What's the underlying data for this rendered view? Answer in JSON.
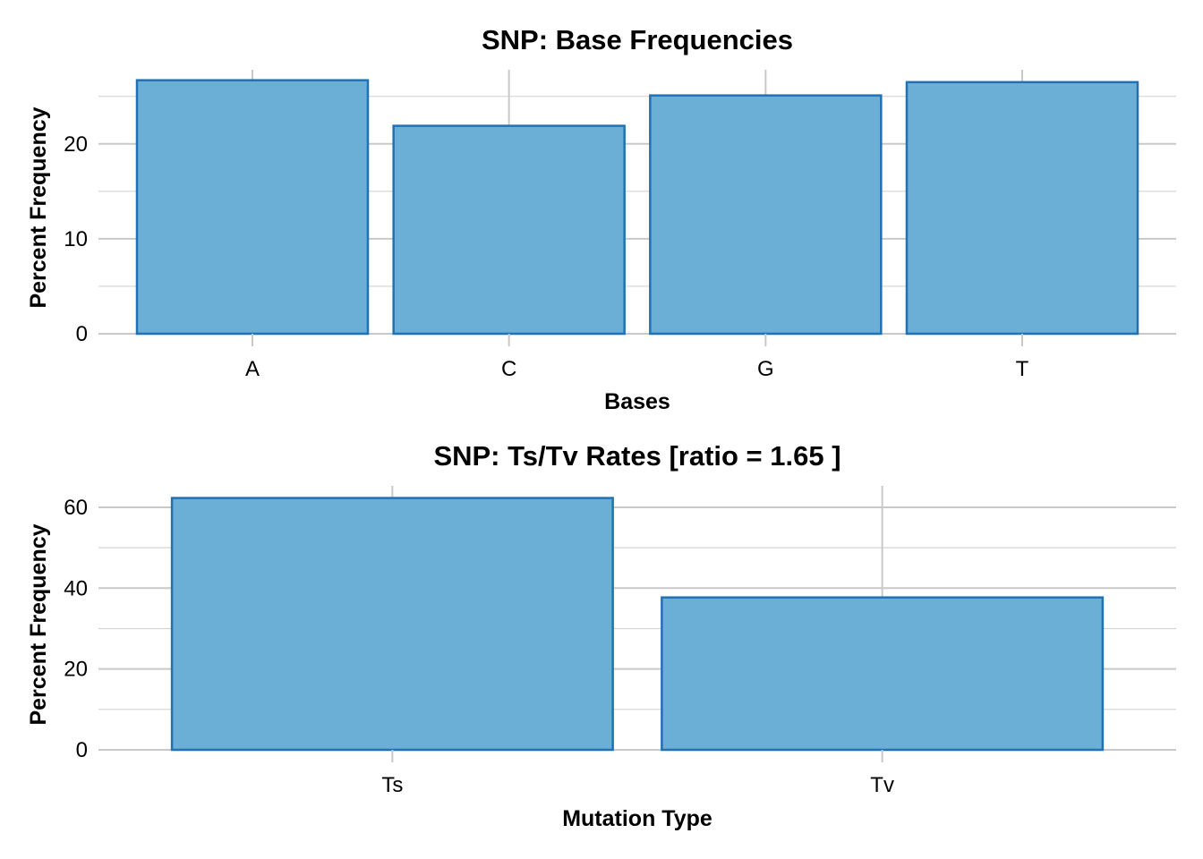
{
  "chart_data": [
    {
      "type": "bar",
      "title": "SNP: Base Frequencies",
      "xlabel": "Bases",
      "ylabel": "Percent Frequency",
      "categories": [
        "A",
        "C",
        "G",
        "T"
      ],
      "values": [
        26.7,
        21.9,
        25.1,
        26.5
      ],
      "ylim": [
        0,
        27.8
      ],
      "yticks": [
        0,
        10,
        20
      ],
      "yminor": [
        5,
        15,
        25
      ],
      "grid": true,
      "bar_fill": "#6baed6",
      "bar_stroke": "#2171b5"
    },
    {
      "type": "bar",
      "title": "SNP: Ts/Tv Rates [ratio = 1.65 ]",
      "xlabel": "Mutation Type",
      "ylabel": "Percent Frequency",
      "categories": [
        "Ts",
        "Tv"
      ],
      "values": [
        62.3,
        37.7
      ],
      "ylim": [
        0,
        65.3
      ],
      "yticks": [
        0,
        20,
        40,
        60
      ],
      "yminor": [
        10,
        30,
        50
      ],
      "grid": true,
      "bar_fill": "#6baed6",
      "bar_stroke": "#2171b5"
    }
  ]
}
